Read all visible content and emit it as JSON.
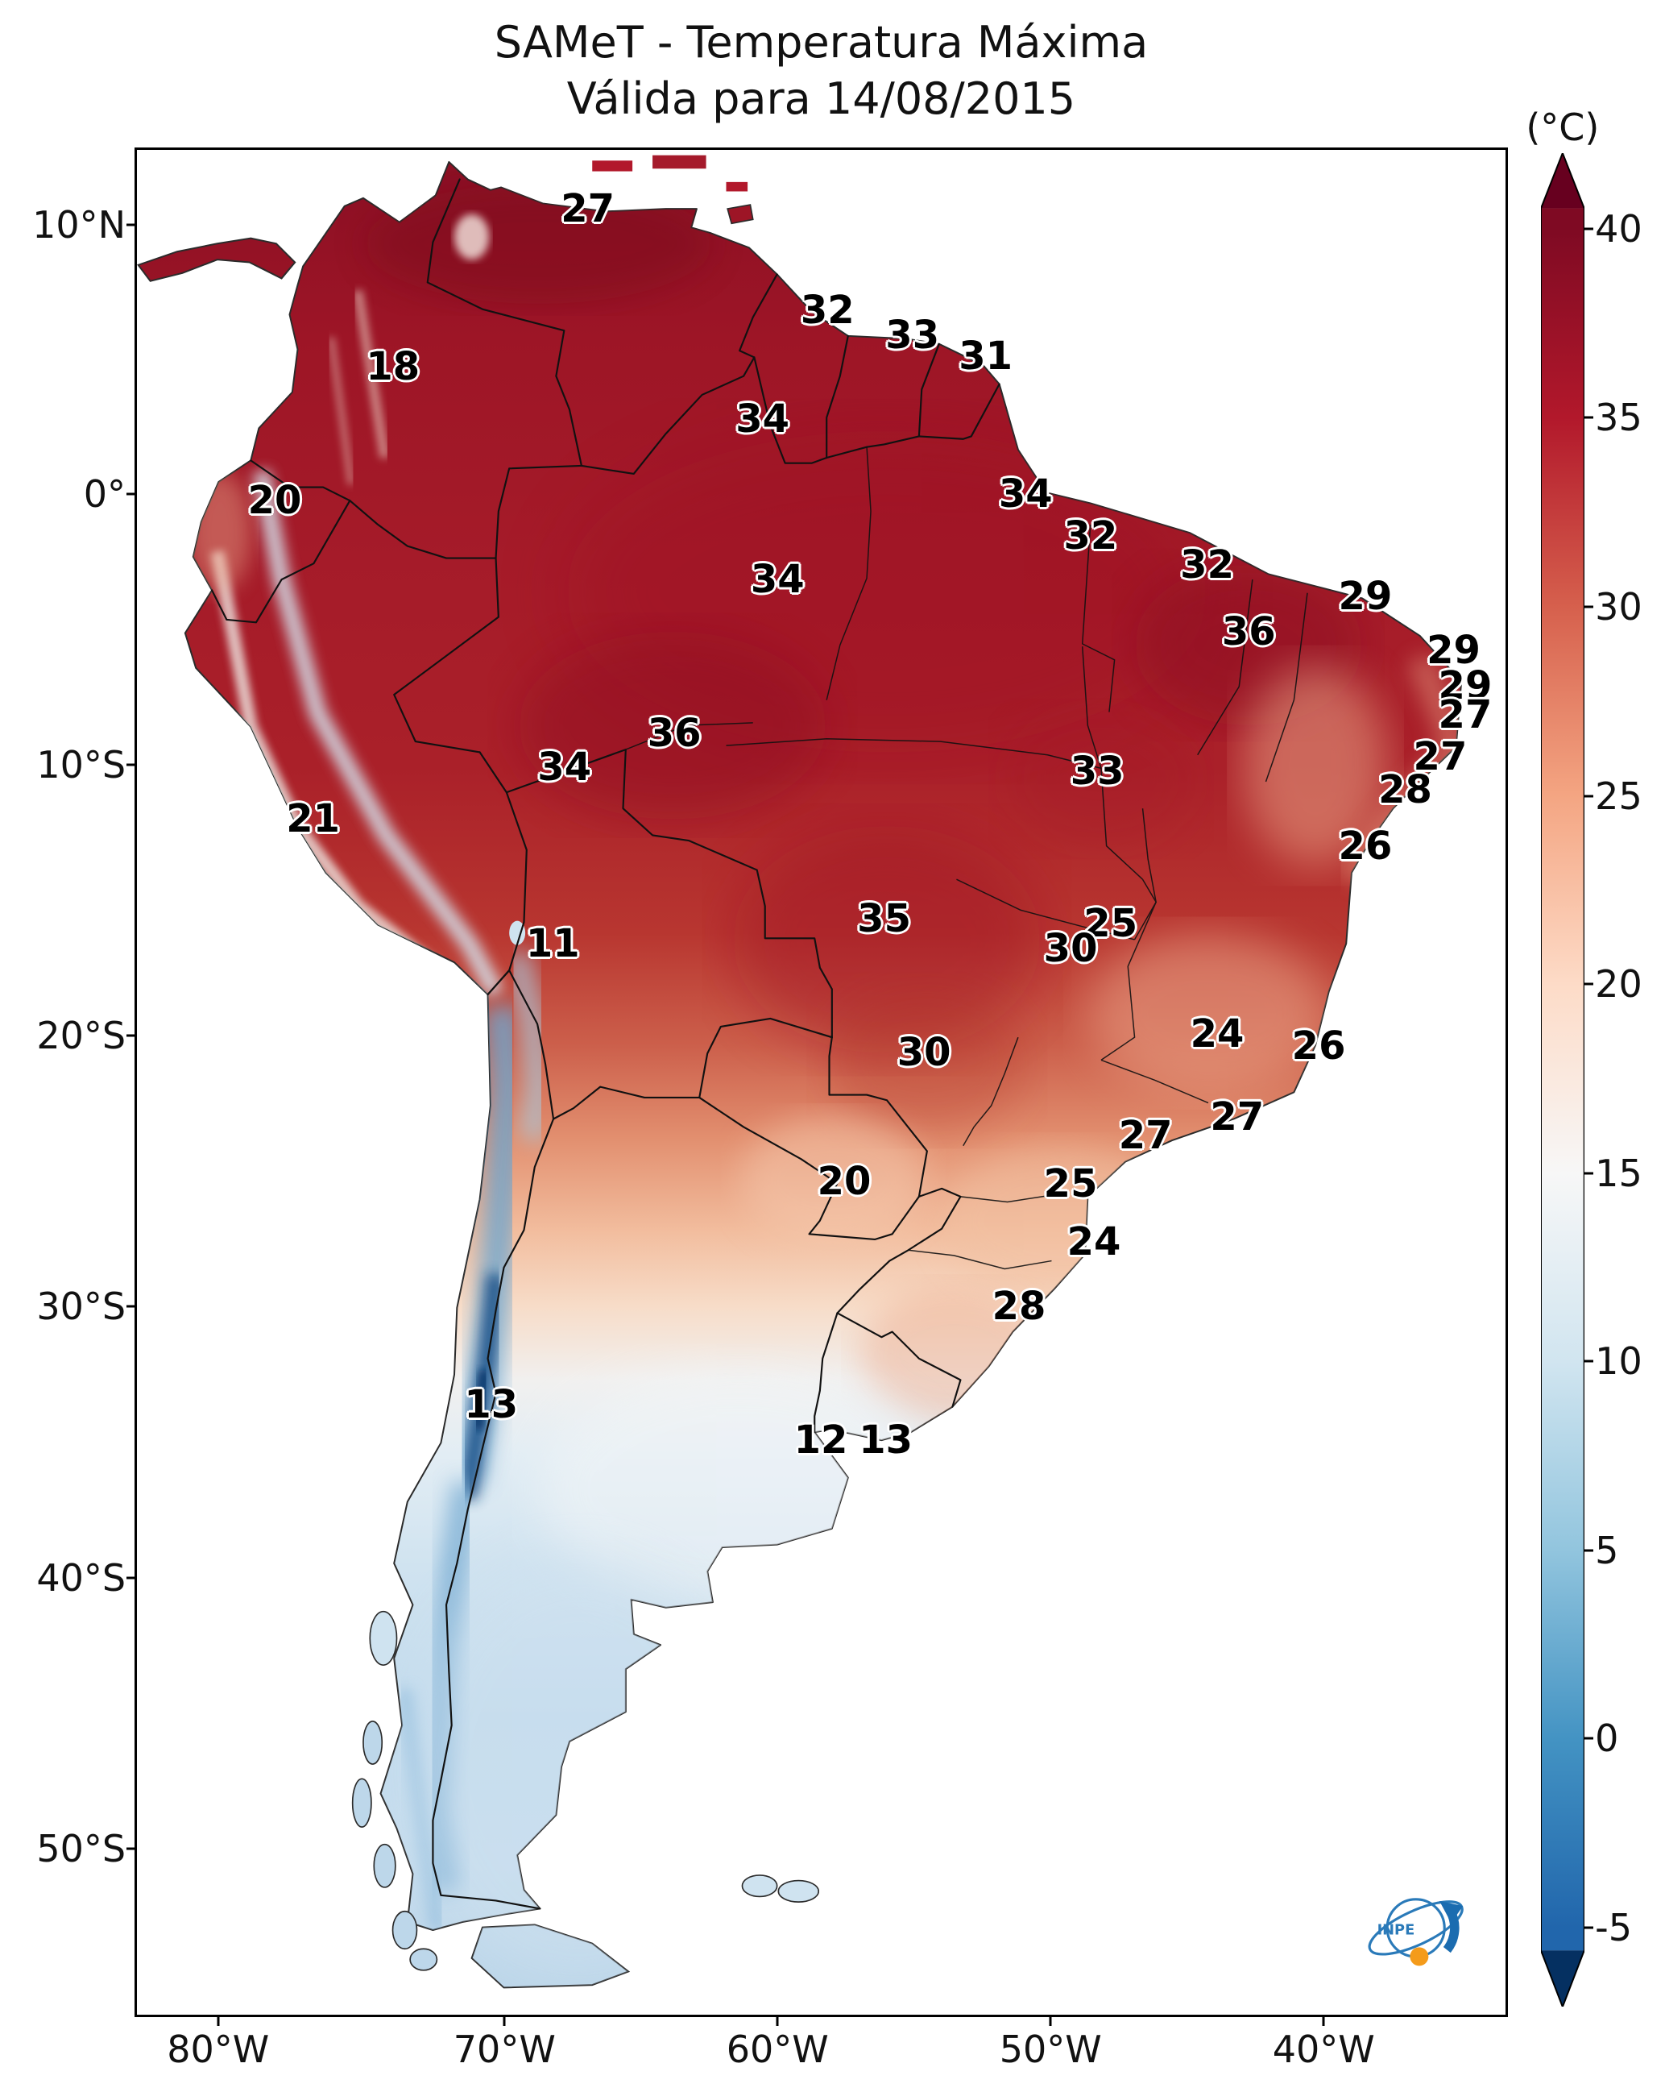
{
  "title": {
    "line1": "SAMeT - Temperatura Máxima",
    "line2": "Válida para 14/08/2015"
  },
  "colorbar": {
    "unit": "(°C)",
    "tip_top_color": "#67001f",
    "tip_bottom_color": "#053061",
    "stops": [
      {
        "value": 40,
        "color": "#7f0a23"
      },
      {
        "value": 35,
        "color": "#b2182b"
      },
      {
        "value": 30,
        "color": "#d6604d"
      },
      {
        "value": 25,
        "color": "#f4a582"
      },
      {
        "value": 20,
        "color": "#fddbc7"
      },
      {
        "value": 15,
        "color": "#f7f7f7"
      },
      {
        "value": 10,
        "color": "#d1e5f0"
      },
      {
        "value": 5,
        "color": "#92c5de"
      },
      {
        "value": 0,
        "color": "#4393c3"
      },
      {
        "value": -5,
        "color": "#2166ac"
      }
    ],
    "ticks": [
      {
        "label": "40",
        "y": 11.0
      },
      {
        "label": "35",
        "y": 20.05
      },
      {
        "label": "30",
        "y": 29.1
      },
      {
        "label": "25",
        "y": 38.2
      },
      {
        "label": "20",
        "y": 47.2
      },
      {
        "label": "15",
        "y": 56.3
      },
      {
        "label": "10",
        "y": 65.3
      },
      {
        "label": "5",
        "y": 74.4
      },
      {
        "label": "0",
        "y": 83.4
      },
      {
        "label": "-5",
        "y": 92.5
      }
    ]
  },
  "axes": {
    "lat": [
      {
        "label": "10°N",
        "y": 10.8
      },
      {
        "label": "0°",
        "y": 23.7
      },
      {
        "label": "10°S",
        "y": 36.7
      },
      {
        "label": "20°S",
        "y": 49.7
      },
      {
        "label": "30°S",
        "y": 62.7
      },
      {
        "label": "40°S",
        "y": 75.7
      },
      {
        "label": "50°S",
        "y": 88.7
      }
    ],
    "lon": [
      {
        "label": "80°W",
        "x": 13.1
      },
      {
        "label": "70°W",
        "x": 30.3
      },
      {
        "label": "60°W",
        "x": 46.7
      },
      {
        "label": "50°W",
        "x": 63.1
      },
      {
        "label": "40°W",
        "x": 79.5
      }
    ]
  },
  "chart_data": {
    "type": "heatmap",
    "subtype": "geographic-temperature-map",
    "region": "South America",
    "title": "SAMeT - Temperatura Máxima",
    "valid_date": "14/08/2015",
    "unit": "°C",
    "colorbar_range": [
      -5,
      40
    ],
    "colormap": "RdBu_r",
    "temperature_labels": [
      {
        "value": 27,
        "x": 35.3,
        "y": 10.0
      },
      {
        "value": 18,
        "x": 23.6,
        "y": 17.6
      },
      {
        "value": 20,
        "x": 16.5,
        "y": 24.0
      },
      {
        "value": 32,
        "x": 49.7,
        "y": 14.9
      },
      {
        "value": 33,
        "x": 54.8,
        "y": 16.1
      },
      {
        "value": 31,
        "x": 59.2,
        "y": 17.1
      },
      {
        "value": 34,
        "x": 45.8,
        "y": 20.1
      },
      {
        "value": 34,
        "x": 61.6,
        "y": 23.7
      },
      {
        "value": 32,
        "x": 65.5,
        "y": 25.7
      },
      {
        "value": 32,
        "x": 72.5,
        "y": 27.1
      },
      {
        "value": 29,
        "x": 82.0,
        "y": 28.6
      },
      {
        "value": 36,
        "x": 75.0,
        "y": 30.3
      },
      {
        "value": 29,
        "x": 87.3,
        "y": 31.2
      },
      {
        "value": 29,
        "x": 88.0,
        "y": 32.9
      },
      {
        "value": 27,
        "x": 88.0,
        "y": 34.3
      },
      {
        "value": 27,
        "x": 86.5,
        "y": 36.3
      },
      {
        "value": 28,
        "x": 84.4,
        "y": 37.9
      },
      {
        "value": 26,
        "x": 82.0,
        "y": 40.6
      },
      {
        "value": 34,
        "x": 46.7,
        "y": 27.8
      },
      {
        "value": 36,
        "x": 40.5,
        "y": 35.2
      },
      {
        "value": 34,
        "x": 33.9,
        "y": 36.8
      },
      {
        "value": 33,
        "x": 65.9,
        "y": 37.0
      },
      {
        "value": 21,
        "x": 18.8,
        "y": 39.3
      },
      {
        "value": 35,
        "x": 53.1,
        "y": 44.1
      },
      {
        "value": 25,
        "x": 66.7,
        "y": 44.3
      },
      {
        "value": 30,
        "x": 64.3,
        "y": 45.5
      },
      {
        "value": 11,
        "x": 33.2,
        "y": 45.3
      },
      {
        "value": 24,
        "x": 73.1,
        "y": 49.6
      },
      {
        "value": 26,
        "x": 79.2,
        "y": 50.2
      },
      {
        "value": 30,
        "x": 55.5,
        "y": 50.5
      },
      {
        "value": 27,
        "x": 68.8,
        "y": 54.5
      },
      {
        "value": 27,
        "x": 74.3,
        "y": 53.6
      },
      {
        "value": 20,
        "x": 50.7,
        "y": 56.7
      },
      {
        "value": 25,
        "x": 64.3,
        "y": 56.8
      },
      {
        "value": 24,
        "x": 65.7,
        "y": 59.6
      },
      {
        "value": 28,
        "x": 61.2,
        "y": 62.7
      },
      {
        "value": 13,
        "x": 29.5,
        "y": 67.4
      },
      {
        "value": 12,
        "x": 49.3,
        "y": 69.1
      },
      {
        "value": 13,
        "x": 53.2,
        "y": 69.1
      }
    ]
  },
  "logo": {
    "text": "INPE"
  }
}
